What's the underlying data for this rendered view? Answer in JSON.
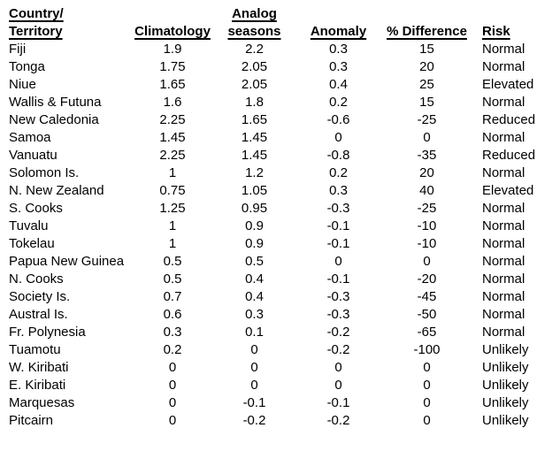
{
  "colors": {
    "text": "#000000",
    "background": "#ffffff"
  },
  "table": {
    "headers": [
      {
        "lines": [
          "Country/",
          "Territory"
        ],
        "align": "left"
      },
      {
        "lines": [
          "Climatology"
        ],
        "align": "center"
      },
      {
        "lines": [
          "Analog",
          "seasons"
        ],
        "align": "center"
      },
      {
        "lines": [
          "Anomaly"
        ],
        "align": "center"
      },
      {
        "lines": [
          "% Difference"
        ],
        "align": "center"
      },
      {
        "lines": [
          "Risk"
        ],
        "align": "left"
      }
    ],
    "rows": [
      {
        "territory": "Fiji",
        "climatology": "1.9",
        "analog_seasons": "2.2",
        "anomaly": "0.3",
        "pct_difference": "15",
        "risk": "Normal"
      },
      {
        "territory": "Tonga",
        "climatology": "1.75",
        "analog_seasons": "2.05",
        "anomaly": "0.3",
        "pct_difference": "20",
        "risk": "Normal"
      },
      {
        "territory": "Niue",
        "climatology": "1.65",
        "analog_seasons": "2.05",
        "anomaly": "0.4",
        "pct_difference": "25",
        "risk": "Elevated"
      },
      {
        "territory": "Wallis & Futuna",
        "climatology": "1.6",
        "analog_seasons": "1.8",
        "anomaly": "0.2",
        "pct_difference": "15",
        "risk": "Normal"
      },
      {
        "territory": "New Caledonia",
        "climatology": "2.25",
        "analog_seasons": "1.65",
        "anomaly": "-0.6",
        "pct_difference": "-25",
        "risk": "Reduced"
      },
      {
        "territory": "Samoa",
        "climatology": "1.45",
        "analog_seasons": "1.45",
        "anomaly": "0",
        "pct_difference": "0",
        "risk": "Normal"
      },
      {
        "territory": "Vanuatu",
        "climatology": "2.25",
        "analog_seasons": "1.45",
        "anomaly": "-0.8",
        "pct_difference": "-35",
        "risk": "Reduced"
      },
      {
        "territory": "Solomon Is.",
        "climatology": "1",
        "analog_seasons": "1.2",
        "anomaly": "0.2",
        "pct_difference": "20",
        "risk": "Normal"
      },
      {
        "territory": "N. New Zealand",
        "climatology": "0.75",
        "analog_seasons": "1.05",
        "anomaly": "0.3",
        "pct_difference": "40",
        "risk": "Elevated"
      },
      {
        "territory": "S. Cooks",
        "climatology": "1.25",
        "analog_seasons": "0.95",
        "anomaly": "-0.3",
        "pct_difference": "-25",
        "risk": "Normal"
      },
      {
        "territory": "Tuvalu",
        "climatology": "1",
        "analog_seasons": "0.9",
        "anomaly": "-0.1",
        "pct_difference": "-10",
        "risk": "Normal"
      },
      {
        "territory": "Tokelau",
        "climatology": "1",
        "analog_seasons": "0.9",
        "anomaly": "-0.1",
        "pct_difference": "-10",
        "risk": "Normal"
      },
      {
        "territory": "Papua New Guinea",
        "climatology": "0.5",
        "analog_seasons": "0.5",
        "anomaly": "0",
        "pct_difference": "0",
        "risk": "Normal"
      },
      {
        "territory": "N. Cooks",
        "climatology": "0.5",
        "analog_seasons": "0.4",
        "anomaly": "-0.1",
        "pct_difference": "-20",
        "risk": "Normal"
      },
      {
        "territory": "Society Is.",
        "climatology": "0.7",
        "analog_seasons": "0.4",
        "anomaly": "-0.3",
        "pct_difference": "-45",
        "risk": "Normal"
      },
      {
        "territory": "Austral Is.",
        "climatology": "0.6",
        "analog_seasons": "0.3",
        "anomaly": "-0.3",
        "pct_difference": "-50",
        "risk": "Normal"
      },
      {
        "territory": "Fr. Polynesia",
        "climatology": "0.3",
        "analog_seasons": "0.1",
        "anomaly": "-0.2",
        "pct_difference": "-65",
        "risk": "Normal"
      },
      {
        "territory": "Tuamotu",
        "climatology": "0.2",
        "analog_seasons": "0",
        "anomaly": "-0.2",
        "pct_difference": "-100",
        "risk": "Unlikely"
      },
      {
        "territory": "W. Kiribati",
        "climatology": "0",
        "analog_seasons": "0",
        "anomaly": "0",
        "pct_difference": "0",
        "risk": "Unlikely"
      },
      {
        "territory": "E. Kiribati",
        "climatology": "0",
        "analog_seasons": "0",
        "anomaly": "0",
        "pct_difference": "0",
        "risk": "Unlikely"
      },
      {
        "territory": "Marquesas",
        "climatology": "0",
        "analog_seasons": "-0.1",
        "anomaly": "-0.1",
        "pct_difference": "0",
        "risk": "Unlikely"
      },
      {
        "territory": "Pitcairn",
        "climatology": "0",
        "analog_seasons": "-0.2",
        "anomaly": "-0.2",
        "pct_difference": "0",
        "risk": "Unlikely"
      }
    ]
  }
}
